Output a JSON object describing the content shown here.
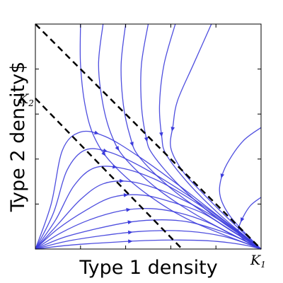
{
  "chart_data": {
    "type": "line",
    "subtype": "phase-portrait",
    "xlabel": "Type 1 density",
    "ylabel": "Type 2 density$",
    "xlim": [
      0,
      1
    ],
    "ylim": [
      0,
      1
    ],
    "x_tick_label": "K",
    "x_tick_sub": "1",
    "y_tick_label": "K",
    "y_tick_sub": "2",
    "grid": false,
    "colors": {
      "streamline": "#3b3bdc",
      "nullcline": "#000000",
      "frame": "#000000"
    },
    "nullclines": [
      {
        "x": [
          0,
          1
        ],
        "y": [
          1,
          0
        ]
      },
      {
        "x": [
          0,
          0.65
        ],
        "y": [
          0.67,
          0
        ]
      }
    ],
    "stable_equilibrium": [
      1,
      0
    ],
    "trajectories": [
      {
        "x": [
          0.2,
          0.2,
          0.22,
          0.26,
          0.34,
          0.5,
          0.7,
          1.0
        ],
        "y": [
          1.0,
          0.82,
          0.64,
          0.5,
          0.38,
          0.24,
          0.12,
          0.0
        ]
      },
      {
        "x": [
          0.3,
          0.28,
          0.3,
          0.34,
          0.4,
          0.55,
          0.75,
          1.0
        ],
        "y": [
          1.0,
          0.82,
          0.64,
          0.5,
          0.4,
          0.26,
          0.13,
          0.0
        ]
      },
      {
        "x": [
          0.4,
          0.38,
          0.39,
          0.42,
          0.46,
          0.6,
          0.78,
          1.0
        ],
        "y": [
          1.0,
          0.82,
          0.64,
          0.5,
          0.41,
          0.27,
          0.14,
          0.0
        ]
      },
      {
        "x": [
          0.5,
          0.47,
          0.47,
          0.49,
          0.52,
          0.64,
          0.8,
          1.0
        ],
        "y": [
          1.0,
          0.82,
          0.64,
          0.5,
          0.42,
          0.28,
          0.14,
          0.0
        ]
      },
      {
        "x": [
          0.62,
          0.57,
          0.55,
          0.56,
          0.58,
          0.68,
          0.82,
          1.0
        ],
        "y": [
          1.0,
          0.82,
          0.64,
          0.5,
          0.42,
          0.29,
          0.15,
          0.0
        ]
      },
      {
        "x": [
          0.78,
          0.7,
          0.63,
          0.61,
          0.6,
          0.65,
          0.73,
          0.85,
          1.0
        ],
        "y": [
          1.0,
          0.82,
          0.66,
          0.55,
          0.45,
          0.35,
          0.26,
          0.14,
          0.0
        ]
      },
      {
        "x": [
          1.0,
          0.92,
          0.85,
          0.82,
          0.82,
          0.86,
          0.93,
          1.0
        ],
        "y": [
          0.54,
          0.48,
          0.38,
          0.3,
          0.23,
          0.15,
          0.07,
          0.0
        ]
      },
      {
        "x": [
          1.0,
          0.95,
          0.91,
          0.9,
          0.94,
          1.0
        ],
        "y": [
          0.23,
          0.19,
          0.12,
          0.07,
          0.03,
          0.0
        ]
      },
      {
        "x": [
          0.0,
          0.07,
          0.12,
          0.2,
          0.31,
          0.46,
          0.64,
          0.82,
          1.0
        ],
        "y": [
          0.0,
          0.2,
          0.44,
          0.52,
          0.5,
          0.41,
          0.28,
          0.14,
          0.0
        ]
      },
      {
        "x": [
          0.0,
          0.08,
          0.14,
          0.22,
          0.33,
          0.48,
          0.66,
          0.83,
          1.0
        ],
        "y": [
          0.0,
          0.16,
          0.35,
          0.44,
          0.43,
          0.36,
          0.25,
          0.13,
          0.0
        ]
      },
      {
        "x": [
          0.0,
          0.09,
          0.17,
          0.26,
          0.38,
          0.53,
          0.69,
          0.85,
          1.0
        ],
        "y": [
          0.0,
          0.13,
          0.28,
          0.36,
          0.36,
          0.31,
          0.22,
          0.11,
          0.0
        ]
      },
      {
        "x": [
          0.0,
          0.1,
          0.2,
          0.3,
          0.42,
          0.56,
          0.71,
          0.86,
          1.0
        ],
        "y": [
          0.0,
          0.11,
          0.22,
          0.29,
          0.3,
          0.26,
          0.19,
          0.1,
          0.0
        ]
      },
      {
        "x": [
          0.0,
          0.1,
          0.22,
          0.34,
          0.47,
          0.6,
          0.74,
          0.87,
          1.0
        ],
        "y": [
          0.0,
          0.09,
          0.17,
          0.23,
          0.24,
          0.21,
          0.16,
          0.08,
          0.0
        ]
      },
      {
        "x": [
          0.0,
          0.11,
          0.24,
          0.38,
          0.51,
          0.64,
          0.76,
          0.88,
          1.0
        ],
        "y": [
          0.0,
          0.07,
          0.13,
          0.17,
          0.18,
          0.16,
          0.12,
          0.06,
          0.0
        ]
      },
      {
        "x": [
          0.0,
          0.12,
          0.27,
          0.42,
          0.56,
          0.68,
          0.79,
          0.9,
          1.0
        ],
        "y": [
          0.0,
          0.05,
          0.09,
          0.12,
          0.13,
          0.12,
          0.09,
          0.05,
          0.0
        ]
      },
      {
        "x": [
          0.0,
          0.14,
          0.3,
          0.46,
          0.6,
          0.72,
          0.83,
          0.92,
          1.0
        ],
        "y": [
          0.0,
          0.035,
          0.06,
          0.078,
          0.082,
          0.075,
          0.057,
          0.03,
          0.0
        ]
      },
      {
        "x": [
          0.0,
          0.16,
          0.34,
          0.5,
          0.64,
          0.76,
          0.86,
          0.94,
          1.0
        ],
        "y": [
          0.0,
          0.018,
          0.03,
          0.038,
          0.04,
          0.037,
          0.028,
          0.015,
          0.0
        ]
      }
    ]
  }
}
